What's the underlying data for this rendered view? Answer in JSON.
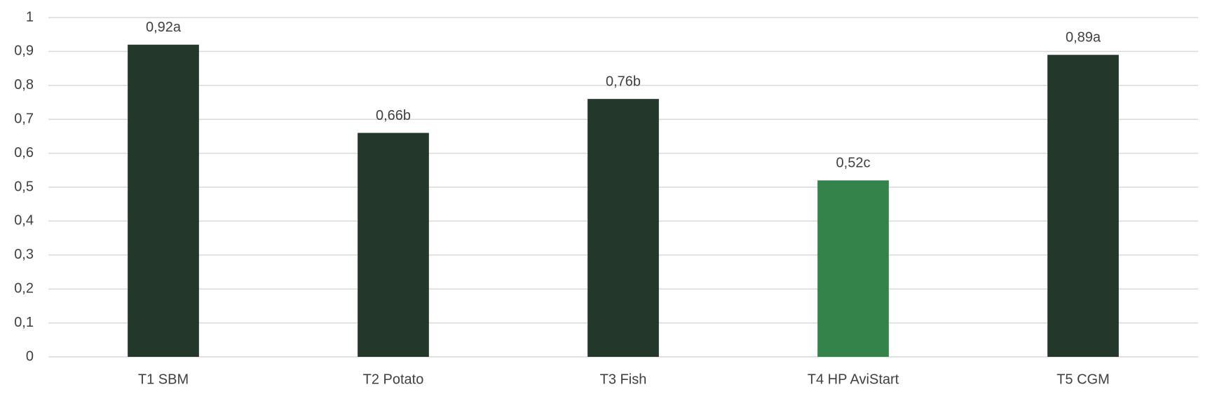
{
  "chart_data": {
    "type": "bar",
    "categories": [
      "T1 SBM",
      "T2 Potato",
      "T3 Fish",
      "T4 HP AviStart",
      "T5 CGM"
    ],
    "values": [
      0.92,
      0.66,
      0.76,
      0.52,
      0.89
    ],
    "value_labels": [
      "0,92a",
      "0,66b",
      "0,76b",
      "0,52c",
      "0,89a"
    ],
    "colors": [
      "#23372b",
      "#23372b",
      "#23372b",
      "#33834a",
      "#23372b"
    ],
    "ylim": [
      0,
      1
    ],
    "yticks": [
      0,
      {
        "value": 0.1,
        "label": "0,1"
      },
      {
        "value": 0.2,
        "label": "0,2"
      },
      {
        "value": 0.3,
        "label": "0,3"
      },
      {
        "value": 0.4,
        "label": "0,4"
      },
      {
        "value": 0.5,
        "label": "0,5"
      },
      {
        "value": 0.6,
        "label": "0,6"
      },
      {
        "value": 0.7,
        "label": "0,7"
      },
      {
        "value": 0.8,
        "label": "0,8"
      },
      {
        "value": 0.9,
        "label": "0,9"
      },
      1
    ],
    "grid": true
  }
}
